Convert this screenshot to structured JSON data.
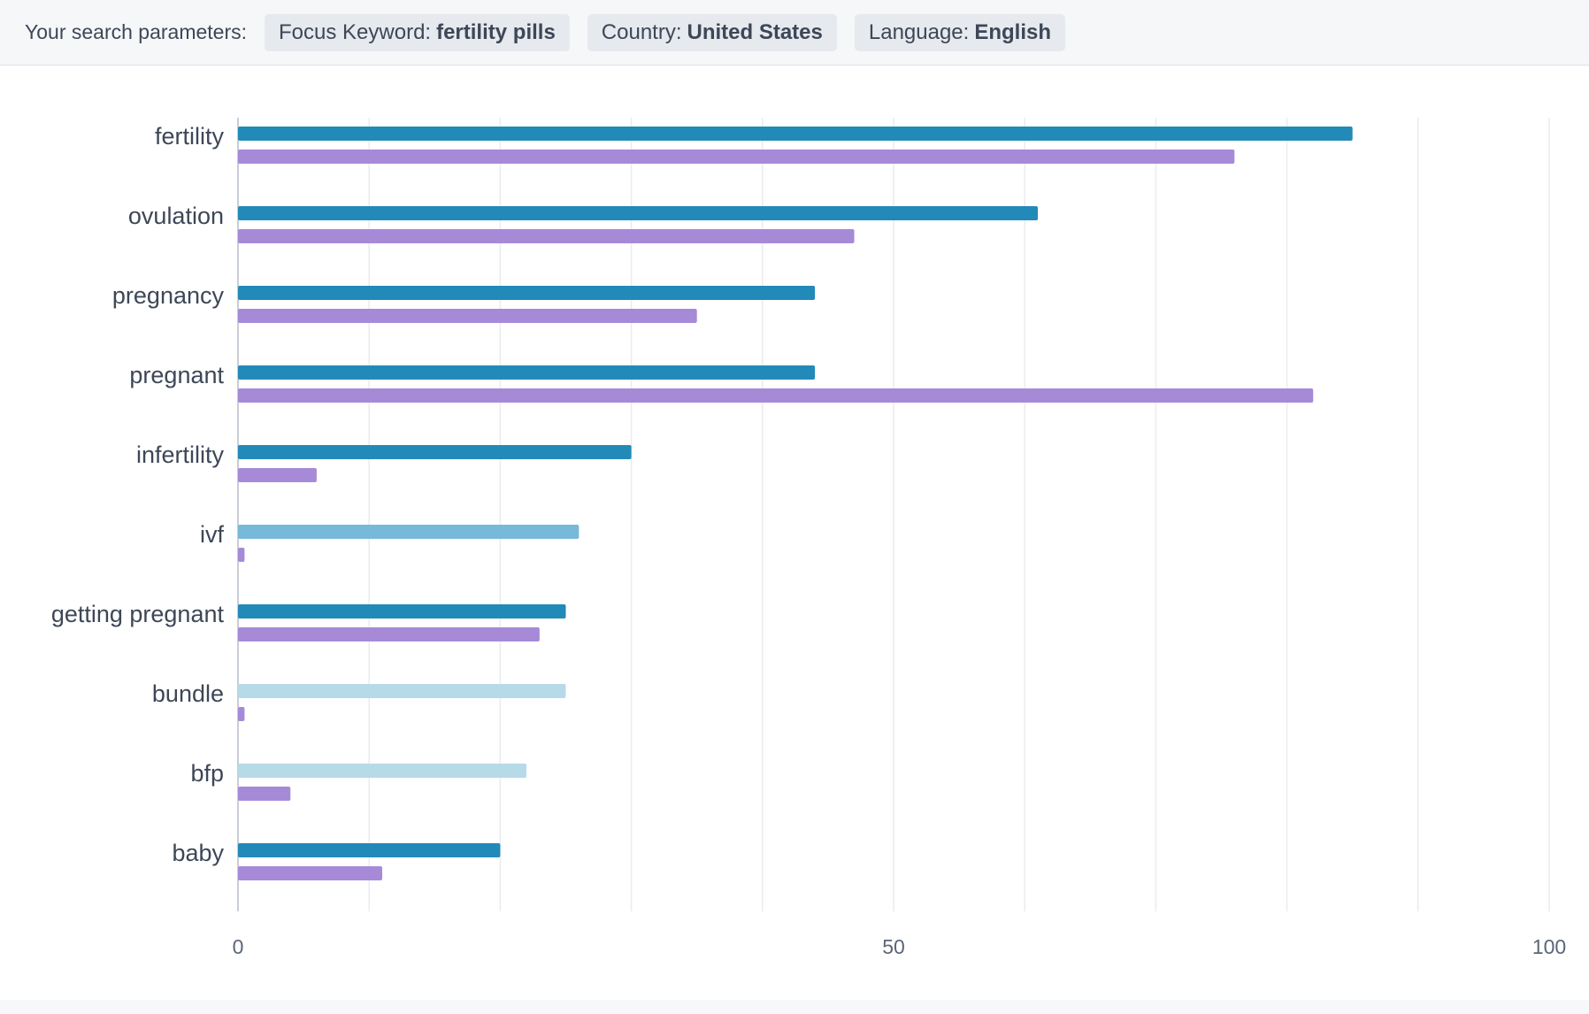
{
  "header": {
    "label": "Your search parameters:",
    "chips": [
      {
        "key": "Focus Keyword:",
        "value": "fertility pills"
      },
      {
        "key": "Country:",
        "value": "United States"
      },
      {
        "key": "Language:",
        "value": "English"
      }
    ]
  },
  "chart_data": {
    "type": "bar",
    "orientation": "horizontal",
    "title": "",
    "xlabel": "",
    "ylabel": "",
    "xlim": [
      0,
      100
    ],
    "x_ticks": [
      0,
      50,
      100
    ],
    "grid": true,
    "categories": [
      "fertility",
      "ovulation",
      "pregnancy",
      "pregnant",
      "infertility",
      "ivf",
      "getting pregnant",
      "bundle",
      "bfp",
      "baby"
    ],
    "series": [
      {
        "values": [
          85,
          61,
          44,
          44,
          30,
          26,
          25,
          25,
          22,
          20
        ],
        "colors": [
          "#228ab8",
          "#228ab8",
          "#228ab8",
          "#228ab8",
          "#228ab8",
          "#77b9d9",
          "#228ab8",
          "#b7dae8",
          "#b7dae8",
          "#228ab8"
        ]
      },
      {
        "values": [
          76,
          47,
          35,
          82,
          6,
          0.5,
          23,
          0.5,
          4,
          11
        ],
        "colors": [
          "#a68ad8",
          "#a68ad8",
          "#a68ad8",
          "#a68ad8",
          "#a68ad8",
          "#a68ad8",
          "#a68ad8",
          "#a68ad8",
          "#a68ad8",
          "#a68ad8"
        ]
      }
    ]
  }
}
